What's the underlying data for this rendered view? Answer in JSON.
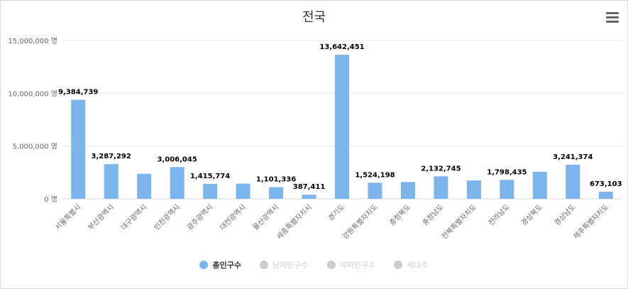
{
  "chart_data": {
    "type": "bar",
    "title": "전국",
    "unit_suffix": " 명",
    "ylim": [
      0,
      15000000
    ],
    "yticks": [
      0,
      5000000,
      10000000,
      15000000
    ],
    "ytick_labels": [
      "0 명",
      "5,000,000 명",
      "10,000,000 명",
      "15,000,000 명"
    ],
    "categories": [
      "서울특별시",
      "부산광역시",
      "대구광역시",
      "인천광역시",
      "광주광역시",
      "대전광역시",
      "울산광역시",
      "세종특별자치시",
      "경기도",
      "강원특별자치도",
      "충청북도",
      "충청남도",
      "전북특별자치도",
      "전라남도",
      "경상북도",
      "경상남도",
      "제주특별자치도"
    ],
    "values": [
      9384739,
      3287292,
      2370000,
      3006045,
      1415774,
      1440000,
      1101336,
      387411,
      13642451,
      1524198,
      1590000,
      2132745,
      1740000,
      1798435,
      2560000,
      3241374,
      673103
    ],
    "data_labels": [
      "9,384,739",
      "3,287,292",
      "",
      "3,006,045",
      "1,415,774",
      "",
      "1,101,336",
      "387,411",
      "13,642,451",
      "1,524,198",
      "",
      "2,132,745",
      "",
      "1,798,435",
      "",
      "3,241,374",
      "673,103"
    ],
    "bar_color": "#7cb5ec",
    "legend": [
      {
        "name": "총인구수",
        "color": "#7cb5ec",
        "active": true
      },
      {
        "name": "남자인구수",
        "color": "#cccccc",
        "active": false
      },
      {
        "name": "여자인구수",
        "color": "#cccccc",
        "active": false
      },
      {
        "name": "세대수",
        "color": "#cccccc",
        "active": false
      }
    ]
  }
}
